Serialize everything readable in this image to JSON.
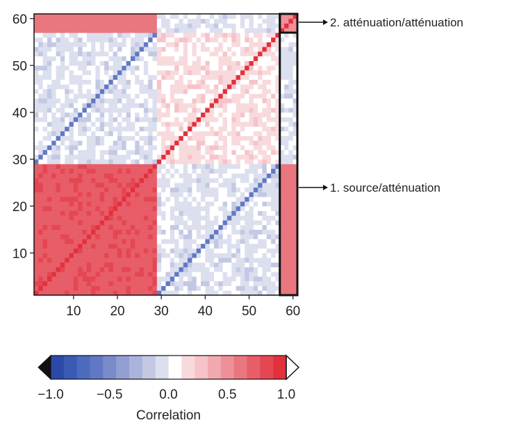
{
  "chart_data": {
    "type": "heatmap",
    "title": "",
    "xlabel": "",
    "ylabel": "",
    "n": 60,
    "xlim": [
      1,
      60
    ],
    "ylim": [
      1,
      60
    ],
    "x_ticks": [
      "10",
      "20",
      "30",
      "40",
      "50",
      "60"
    ],
    "y_ticks": [
      "10",
      "20",
      "30",
      "40",
      "50",
      "60"
    ],
    "x_tick_values": [
      10,
      20,
      30,
      40,
      50,
      60
    ],
    "y_tick_values": [
      10,
      20,
      30,
      40,
      50,
      60
    ],
    "groups": [
      {
        "from": 1,
        "to": 28
      },
      {
        "from": 29,
        "to": 56
      },
      {
        "from": 57,
        "to": 60
      }
    ],
    "block_correlations": [
      {
        "rows": [
          1,
          28
        ],
        "cols": [
          1,
          28
        ],
        "value": 0.75
      },
      {
        "rows": [
          29,
          56
        ],
        "cols": [
          29,
          56
        ],
        "value": 0.15
      },
      {
        "rows": [
          1,
          28
        ],
        "cols": [
          29,
          56
        ],
        "value": -0.1
      },
      {
        "rows": [
          29,
          56
        ],
        "cols": [
          1,
          28
        ],
        "value": -0.1
      },
      {
        "rows": [
          1,
          28
        ],
        "cols": [
          57,
          60
        ],
        "value": 0.6
      },
      {
        "rows": [
          57,
          60
        ],
        "cols": [
          1,
          28
        ],
        "value": 0.6
      },
      {
        "rows": [
          29,
          56
        ],
        "cols": [
          57,
          60
        ],
        "value": -0.1
      },
      {
        "rows": [
          57,
          60
        ],
        "cols": [
          29,
          56
        ],
        "value": -0.1
      },
      {
        "rows": [
          57,
          60
        ],
        "cols": [
          57,
          60
        ],
        "value": 0.5
      }
    ],
    "diagonal": [
      {
        "rows": [
          1,
          28
        ],
        "value": 0.95
      },
      {
        "rows": [
          29,
          56
        ],
        "value": 1.0
      },
      {
        "rows": [
          57,
          60
        ],
        "value": 1.0
      }
    ],
    "offdiagonal_lines": [
      {
        "description_rows": [
          1,
          28
        ],
        "cols_offset": 28,
        "value": -0.6
      }
    ],
    "highlight_boxes": [
      {
        "rows": [
          57,
          60
        ],
        "cols": [
          57,
          60
        ],
        "label": "2. atténuation/atténuation"
      },
      {
        "rows": [
          1,
          60
        ],
        "cols": [
          57,
          60
        ],
        "label": "1. source/atténuation"
      }
    ],
    "colorbar": {
      "min": -1.0,
      "max": 1.0,
      "ticks": [
        "−1.0",
        "−0.5",
        "0.0",
        "0.5",
        "1.0"
      ],
      "tick_values": [
        -1.0,
        -0.5,
        0.0,
        0.5,
        1.0
      ],
      "label": "Correlation",
      "colors": [
        "#2b4aa8",
        "#3a5ab4",
        "#4d6bbd",
        "#6179c4",
        "#7a8bcb",
        "#929fd3",
        "#aab3db",
        "#c3c8e3",
        "#dcdfee",
        "#ffffff",
        "#f8dadd",
        "#f5c3c8",
        "#f1a9b0",
        "#ee9098",
        "#ea7680",
        "#e75d68",
        "#e44652",
        "#e2313d"
      ],
      "extend": "both"
    },
    "grid": false
  }
}
